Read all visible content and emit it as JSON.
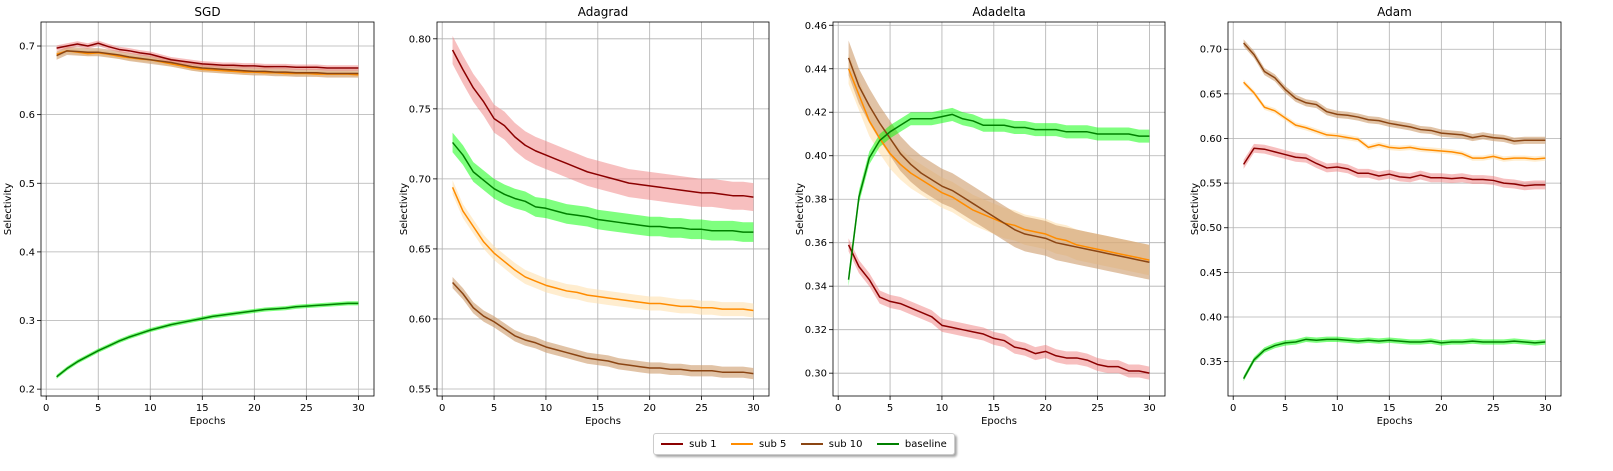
{
  "chart_data": [
    {
      "type": "line",
      "title": "SGD",
      "xlabel": "Epochs",
      "ylabel": "Selectivity",
      "xlim": [
        -0.5,
        31.5
      ],
      "ylim": [
        0.19,
        0.735
      ],
      "xticks": [
        0,
        5,
        10,
        15,
        20,
        25,
        30
      ],
      "yticks": [
        0.2,
        0.3,
        0.4,
        0.5,
        0.6,
        0.7
      ],
      "grid": true,
      "x": [
        1,
        2,
        3,
        4,
        5,
        6,
        7,
        8,
        9,
        10,
        11,
        12,
        13,
        14,
        15,
        16,
        17,
        18,
        19,
        20,
        21,
        22,
        23,
        24,
        25,
        26,
        27,
        28,
        29,
        30
      ],
      "series": [
        {
          "name": "sub 1",
          "band": 0.004,
          "values": [
            0.697,
            0.7,
            0.703,
            0.7,
            0.704,
            0.699,
            0.695,
            0.693,
            0.69,
            0.688,
            0.684,
            0.68,
            0.678,
            0.676,
            0.674,
            0.673,
            0.672,
            0.672,
            0.671,
            0.671,
            0.67,
            0.67,
            0.67,
            0.669,
            0.669,
            0.669,
            0.668,
            0.668,
            0.668,
            0.668
          ]
        },
        {
          "name": "sub 5",
          "band": 0.004,
          "values": [
            0.688,
            0.693,
            0.691,
            0.689,
            0.69,
            0.688,
            0.685,
            0.683,
            0.681,
            0.68,
            0.677,
            0.674,
            0.671,
            0.668,
            0.666,
            0.665,
            0.664,
            0.663,
            0.662,
            0.662,
            0.661,
            0.661,
            0.66,
            0.66,
            0.66,
            0.659,
            0.659,
            0.659,
            0.659,
            0.658
          ]
        },
        {
          "name": "sub 10",
          "band": 0.006,
          "values": [
            0.686,
            0.693,
            0.692,
            0.691,
            0.691,
            0.689,
            0.687,
            0.684,
            0.682,
            0.68,
            0.678,
            0.676,
            0.673,
            0.67,
            0.668,
            0.667,
            0.666,
            0.665,
            0.664,
            0.663,
            0.663,
            0.662,
            0.662,
            0.661,
            0.661,
            0.661,
            0.66,
            0.66,
            0.66,
            0.66
          ]
        },
        {
          "name": "baseline",
          "band": 0.003,
          "values": [
            0.218,
            0.23,
            0.24,
            0.248,
            0.256,
            0.263,
            0.27,
            0.276,
            0.281,
            0.286,
            0.29,
            0.294,
            0.297,
            0.3,
            0.303,
            0.306,
            0.308,
            0.31,
            0.312,
            0.314,
            0.316,
            0.317,
            0.318,
            0.32,
            0.321,
            0.322,
            0.323,
            0.324,
            0.325,
            0.325
          ]
        }
      ]
    },
    {
      "type": "line",
      "title": "Adagrad",
      "xlabel": "Epochs",
      "ylabel": "Selectivity",
      "xlim": [
        -0.5,
        31.5
      ],
      "ylim": [
        0.545,
        0.812
      ],
      "xticks": [
        0,
        5,
        10,
        15,
        20,
        25,
        30
      ],
      "yticks": [
        0.55,
        0.6,
        0.65,
        0.7,
        0.75,
        0.8
      ],
      "grid": true,
      "x": [
        1,
        2,
        3,
        4,
        5,
        6,
        7,
        8,
        9,
        10,
        11,
        12,
        13,
        14,
        15,
        16,
        17,
        18,
        19,
        20,
        21,
        22,
        23,
        24,
        25,
        26,
        27,
        28,
        29,
        30
      ],
      "series": [
        {
          "name": "sub 1",
          "band": 0.01,
          "values": [
            0.792,
            0.778,
            0.765,
            0.755,
            0.743,
            0.738,
            0.73,
            0.724,
            0.72,
            0.717,
            0.714,
            0.711,
            0.708,
            0.705,
            0.703,
            0.701,
            0.699,
            0.697,
            0.696,
            0.695,
            0.694,
            0.693,
            0.692,
            0.691,
            0.69,
            0.69,
            0.689,
            0.688,
            0.688,
            0.687
          ]
        },
        {
          "name": "sub 5",
          "band": 0.005,
          "values": [
            0.694,
            0.677,
            0.666,
            0.655,
            0.647,
            0.641,
            0.635,
            0.63,
            0.627,
            0.624,
            0.622,
            0.62,
            0.619,
            0.617,
            0.616,
            0.615,
            0.614,
            0.613,
            0.612,
            0.611,
            0.611,
            0.61,
            0.609,
            0.609,
            0.608,
            0.608,
            0.607,
            0.607,
            0.607,
            0.606
          ]
        },
        {
          "name": "sub 10",
          "band": 0.004,
          "values": [
            0.626,
            0.618,
            0.608,
            0.602,
            0.598,
            0.593,
            0.588,
            0.585,
            0.583,
            0.58,
            0.578,
            0.576,
            0.574,
            0.572,
            0.571,
            0.57,
            0.568,
            0.567,
            0.566,
            0.565,
            0.565,
            0.564,
            0.564,
            0.563,
            0.563,
            0.563,
            0.562,
            0.562,
            0.562,
            0.561
          ]
        },
        {
          "name": "baseline",
          "band": 0.007,
          "values": [
            0.726,
            0.717,
            0.705,
            0.699,
            0.693,
            0.689,
            0.686,
            0.684,
            0.68,
            0.679,
            0.677,
            0.675,
            0.674,
            0.673,
            0.671,
            0.67,
            0.669,
            0.668,
            0.667,
            0.666,
            0.666,
            0.665,
            0.665,
            0.664,
            0.664,
            0.663,
            0.663,
            0.663,
            0.662,
            0.662
          ]
        }
      ]
    },
    {
      "type": "line",
      "title": "Adadelta",
      "xlabel": "Epochs",
      "ylabel": "Selectivity",
      "xlim": [
        -0.5,
        31.5
      ],
      "ylim": [
        0.2895,
        0.4615
      ],
      "xticks": [
        0,
        5,
        10,
        15,
        20,
        25,
        30
      ],
      "yticks": [
        0.3,
        0.32,
        0.34,
        0.36,
        0.38,
        0.4,
        0.42,
        0.44,
        0.46
      ],
      "grid": true,
      "x": [
        1,
        2,
        3,
        4,
        5,
        6,
        7,
        8,
        9,
        10,
        11,
        12,
        13,
        14,
        15,
        16,
        17,
        18,
        19,
        20,
        21,
        22,
        23,
        24,
        25,
        26,
        27,
        28,
        29,
        30
      ],
      "series": [
        {
          "name": "sub 1",
          "band": 0.003,
          "values": [
            0.359,
            0.349,
            0.343,
            0.335,
            0.333,
            0.332,
            0.33,
            0.328,
            0.326,
            0.322,
            0.321,
            0.32,
            0.319,
            0.318,
            0.316,
            0.315,
            0.312,
            0.311,
            0.309,
            0.31,
            0.308,
            0.307,
            0.307,
            0.306,
            0.304,
            0.303,
            0.303,
            0.301,
            0.301,
            0.3
          ]
        },
        {
          "name": "sub 5",
          "band": 0.007,
          "values": [
            0.44,
            0.428,
            0.416,
            0.408,
            0.401,
            0.396,
            0.392,
            0.389,
            0.386,
            0.383,
            0.381,
            0.378,
            0.375,
            0.373,
            0.371,
            0.369,
            0.368,
            0.366,
            0.365,
            0.364,
            0.362,
            0.361,
            0.359,
            0.358,
            0.357,
            0.356,
            0.355,
            0.354,
            0.353,
            0.352
          ]
        },
        {
          "name": "sub 10",
          "band": 0.008,
          "values": [
            0.445,
            0.432,
            0.423,
            0.415,
            0.408,
            0.401,
            0.396,
            0.392,
            0.389,
            0.386,
            0.384,
            0.381,
            0.378,
            0.375,
            0.372,
            0.369,
            0.366,
            0.364,
            0.363,
            0.362,
            0.36,
            0.359,
            0.358,
            0.357,
            0.356,
            0.355,
            0.354,
            0.353,
            0.352,
            0.351
          ]
        },
        {
          "name": "baseline",
          "band": 0.003,
          "values": [
            0.343,
            0.381,
            0.399,
            0.407,
            0.411,
            0.414,
            0.417,
            0.417,
            0.417,
            0.418,
            0.419,
            0.417,
            0.416,
            0.414,
            0.414,
            0.414,
            0.413,
            0.413,
            0.412,
            0.412,
            0.412,
            0.411,
            0.411,
            0.411,
            0.41,
            0.41,
            0.41,
            0.41,
            0.409,
            0.409
          ]
        }
      ]
    },
    {
      "type": "line",
      "title": "Adam",
      "xlabel": "Epochs",
      "ylabel": "Selectivity",
      "xlim": [
        -0.5,
        31.5
      ],
      "ylim": [
        0.3115,
        0.7305
      ],
      "xticks": [
        0,
        5,
        10,
        15,
        20,
        25,
        30
      ],
      "yticks": [
        0.35,
        0.4,
        0.45,
        0.5,
        0.55,
        0.6,
        0.65,
        0.7
      ],
      "grid": true,
      "x": [
        1,
        2,
        3,
        4,
        5,
        6,
        7,
        8,
        9,
        10,
        11,
        12,
        13,
        14,
        15,
        16,
        17,
        18,
        19,
        20,
        21,
        22,
        23,
        24,
        25,
        26,
        27,
        28,
        29,
        30
      ],
      "series": [
        {
          "name": "sub 1",
          "band": 0.005,
          "values": [
            0.571,
            0.589,
            0.588,
            0.585,
            0.582,
            0.579,
            0.578,
            0.572,
            0.567,
            0.568,
            0.566,
            0.561,
            0.561,
            0.558,
            0.56,
            0.557,
            0.556,
            0.559,
            0.556,
            0.556,
            0.555,
            0.556,
            0.554,
            0.554,
            0.553,
            0.55,
            0.549,
            0.547,
            0.548,
            0.548
          ]
        },
        {
          "name": "sub 5",
          "band": 0.003,
          "values": [
            0.663,
            0.651,
            0.635,
            0.631,
            0.623,
            0.615,
            0.612,
            0.608,
            0.604,
            0.603,
            0.601,
            0.599,
            0.59,
            0.593,
            0.59,
            0.589,
            0.59,
            0.588,
            0.587,
            0.586,
            0.585,
            0.583,
            0.578,
            0.578,
            0.58,
            0.577,
            0.578,
            0.578,
            0.577,
            0.578
          ]
        },
        {
          "name": "sub 10",
          "band": 0.004,
          "values": [
            0.707,
            0.694,
            0.675,
            0.668,
            0.655,
            0.645,
            0.64,
            0.638,
            0.63,
            0.627,
            0.626,
            0.624,
            0.621,
            0.62,
            0.617,
            0.615,
            0.613,
            0.61,
            0.609,
            0.606,
            0.605,
            0.604,
            0.601,
            0.603,
            0.601,
            0.6,
            0.597,
            0.598,
            0.598,
            0.598
          ]
        },
        {
          "name": "baseline",
          "band": 0.003,
          "values": [
            0.331,
            0.352,
            0.363,
            0.368,
            0.371,
            0.372,
            0.375,
            0.374,
            0.375,
            0.375,
            0.374,
            0.373,
            0.374,
            0.373,
            0.374,
            0.373,
            0.372,
            0.372,
            0.373,
            0.371,
            0.372,
            0.372,
            0.373,
            0.372,
            0.372,
            0.372,
            0.373,
            0.372,
            0.371,
            0.372
          ]
        }
      ]
    }
  ],
  "legend": {
    "placement": "lower-center",
    "items": [
      {
        "name": "sub 1",
        "color": "#8b0000",
        "band_color": "#f08080"
      },
      {
        "name": "sub 5",
        "color": "#ff8c00",
        "band_color": "#ffdfa8"
      },
      {
        "name": "sub 10",
        "color": "#8b4513",
        "band_color": "#cd9b6a"
      },
      {
        "name": "baseline",
        "color": "#008000",
        "band_color": "#00ff00"
      }
    ]
  }
}
